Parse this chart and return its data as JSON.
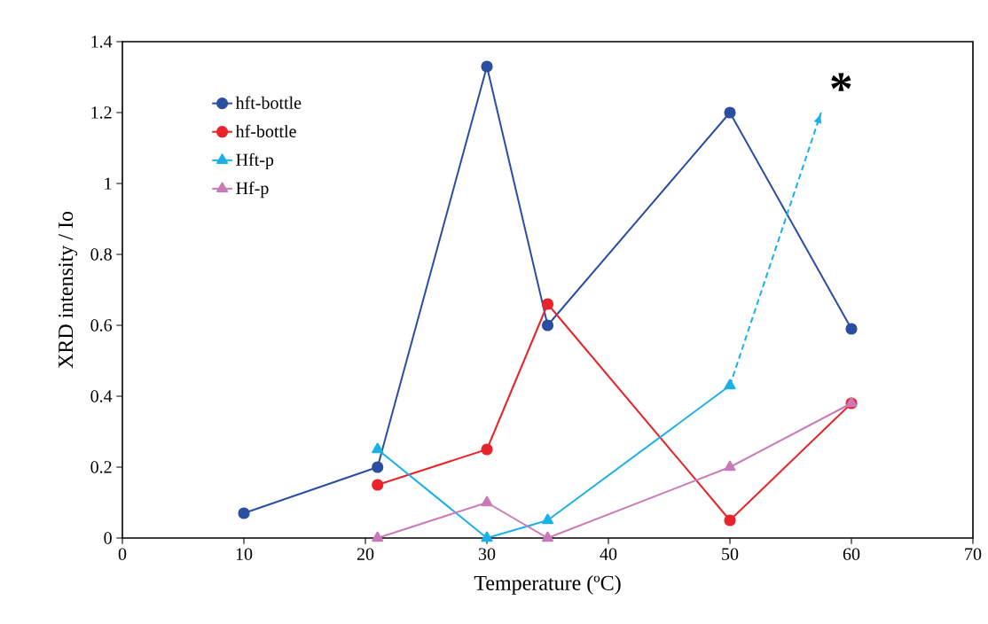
{
  "chart_data": {
    "type": "line",
    "xlabel": "Temperature (ºC)",
    "ylabel": "XRD intensity / Io",
    "xlim": [
      0,
      70
    ],
    "xticks": [
      0,
      10,
      20,
      30,
      40,
      50,
      60,
      70
    ],
    "ylim": [
      0,
      1.4
    ],
    "yticks": [
      0,
      0.2,
      0.4,
      0.6,
      0.8,
      1,
      1.2,
      1.4
    ],
    "legend": "top left",
    "grid": false,
    "series": [
      {
        "name": "hft-bottle",
        "color": "#2a4ea0",
        "marker": "circle",
        "x": [
          10,
          21,
          30,
          35,
          50,
          60
        ],
        "values": [
          0.07,
          0.2,
          1.33,
          0.6,
          1.2,
          0.59
        ]
      },
      {
        "name": "hf-bottle",
        "color": "#e8242a",
        "marker": "circle",
        "x": [
          21,
          30,
          35,
          50,
          60
        ],
        "values": [
          0.15,
          0.25,
          0.66,
          0.05,
          0.38
        ]
      },
      {
        "name": "Hft-p",
        "color": "#1ab0e8",
        "marker": "triangle",
        "x": [
          21,
          30,
          35,
          50
        ],
        "values": [
          0.25,
          0,
          0.05,
          0.43
        ]
      },
      {
        "name": "Hf-p",
        "color": "#c97bb8",
        "marker": "triangle",
        "x": [
          21,
          30,
          35,
          50,
          60
        ],
        "values": [
          0,
          0.1,
          0,
          0.2,
          0.38
        ]
      },
      {
        "color": "#1ab0e8",
        "marker": "none",
        "line_style": "dashed",
        "x": [
          50,
          57.5
        ],
        "values": [
          0.43,
          1.2
        ]
      }
    ],
    "annotations": [
      "*"
    ]
  }
}
